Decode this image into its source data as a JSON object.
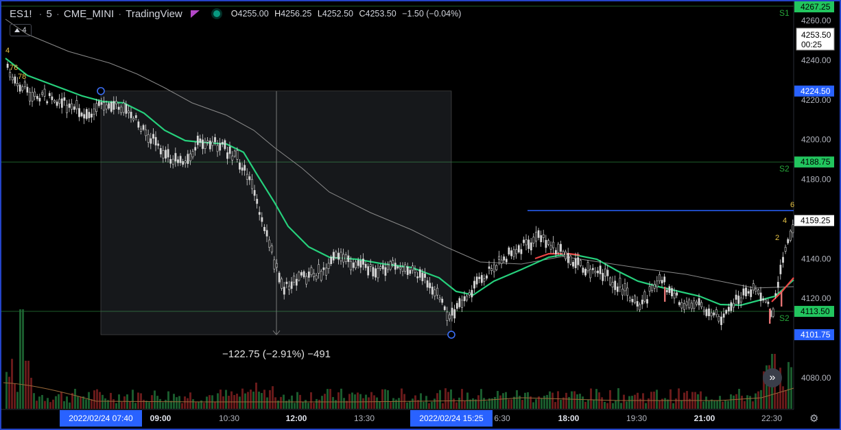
{
  "header": {
    "symbol": "ES1!",
    "interval": "5",
    "exchange": "CME_MINI",
    "source": "TradingView",
    "open_label": "O",
    "open": "4255.00",
    "high_label": "H",
    "high": "4256.25",
    "low_label": "L",
    "low": "4252.50",
    "close_label": "C",
    "close": "4253.50",
    "change": "−1.50 (−0.04%)"
  },
  "indicator_count": "4",
  "measure_label": "−122.75 (−2.91%) −491",
  "price_scale": {
    "ticks": [
      "4260.00",
      "4240.00",
      "4220.00",
      "4200.00",
      "4180.00",
      "4140.00",
      "4120.00",
      "4080.00"
    ],
    "tick_values": [
      4260,
      4240,
      4220,
      4200,
      4180,
      4140,
      4120,
      4080
    ],
    "badges": [
      {
        "label": "4267.25",
        "value": 4267.25,
        "color": "#22c55e",
        "text_color": "#000000"
      },
      {
        "label": "4224.50",
        "value": 4224.5,
        "color": "#2962ff",
        "text_color": "#ffffff"
      },
      {
        "label": "4188.75",
        "value": 4188.75,
        "color": "#22c55e",
        "text_color": "#000000"
      },
      {
        "label": "4159.25",
        "value": 4159.25,
        "color": "#ffffff",
        "text_color": "#000000"
      },
      {
        "label": "4113.50",
        "value": 4113.5,
        "color": "#22c55e",
        "text_color": "#000000"
      },
      {
        "label": "4101.75",
        "value": 4101.75,
        "color": "#2962ff",
        "text_color": "#ffffff"
      }
    ],
    "last_price": "4253.50",
    "countdown": "00:25"
  },
  "levels": [
    {
      "label": "S1",
      "value": 4267.25
    },
    {
      "label": "S2",
      "value": 4188.75
    },
    {
      "label": "S2",
      "value": 4113.5
    }
  ],
  "time_axis": {
    "ticks": [
      "09:00",
      "10:30",
      "12:00",
      "13:30",
      "6:30",
      "18:00",
      "19:30",
      "21:00",
      "22:30"
    ],
    "bold": [
      "09:00",
      "12:00",
      "18:00",
      "21:00"
    ],
    "range_start": "2022/02/24   07:40",
    "range_end": "2022/02/24   15:25"
  },
  "annotations": [
    {
      "text": "4"
    },
    {
      "text": "76"
    },
    {
      "text": "78"
    },
    {
      "text": "6"
    },
    {
      "text": "4"
    },
    {
      "text": "2"
    }
  ],
  "chart_data": {
    "type": "line",
    "x": [
      "07:00",
      "07:40",
      "09:00",
      "10:30",
      "11:35",
      "12:00",
      "13:30",
      "15:25",
      "15:50",
      "17:15",
      "18:00",
      "19:30",
      "21:00",
      "22:30",
      "23:15"
    ],
    "series": [
      {
        "values": [
          4246,
          4220,
          4210,
          4196,
          4180,
          4150,
          4138,
          4115,
          4120,
          4135,
          4140,
          4130,
          4118,
          4116,
          4130
        ]
      },
      {
        "values": [
          4262,
          4240,
          4226,
          4212,
          4200,
          4180,
          4160,
          4144,
          4142,
          4140,
          4138,
          4132,
          4126,
          4120,
          4125
        ]
      }
    ],
    "ylim": [
      4065,
      4270
    ],
    "grid": false
  },
  "colors": {
    "ema": "#26d07c",
    "ema_red": "#ef4444",
    "sma": "#8a8a8a",
    "candle": "#d8d8d8",
    "vol_red": "#7a1f1f",
    "vol_green": "#1f6b35",
    "accent": "#2962ff"
  },
  "icons": [
    "chevron-up-icon",
    "fast-forward-icon",
    "gear-icon"
  ]
}
